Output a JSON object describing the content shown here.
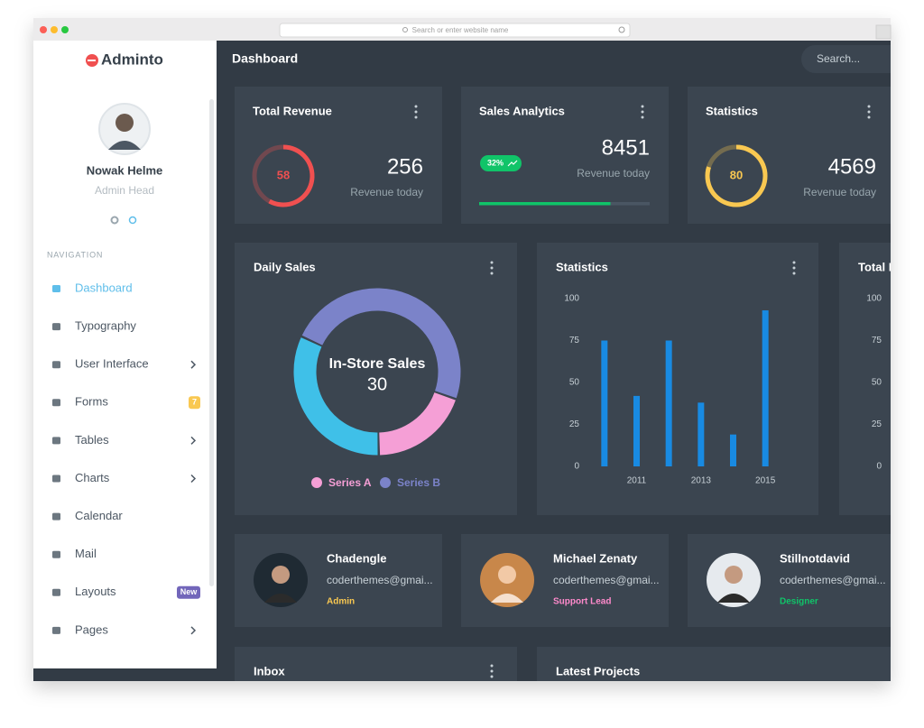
{
  "browser": {
    "address_placeholder": "Search or enter website name"
  },
  "sidebar": {
    "brand": "Adminto",
    "user": {
      "name": "Nowak Helme",
      "role": "Admin Head"
    },
    "nav_heading": "NAVIGATION",
    "nav": [
      {
        "label": "Dashboard"
      },
      {
        "label": "Typography"
      },
      {
        "label": "User Interface"
      },
      {
        "label": "Forms",
        "badge": "7"
      },
      {
        "label": "Tables"
      },
      {
        "label": "Charts"
      },
      {
        "label": "Calendar"
      },
      {
        "label": "Mail"
      },
      {
        "label": "Layouts",
        "badge": "New"
      },
      {
        "label": "Pages"
      }
    ]
  },
  "topbar": {
    "title": "Dashboard",
    "search_placeholder": "Search..."
  },
  "widgets": [
    {
      "title": "Total Revenue",
      "percent": 58,
      "value": 256,
      "caption": "Revenue today",
      "color": "#f05050"
    },
    {
      "title": "Sales Analytics",
      "badge": "32%",
      "value": 8451,
      "caption": "Revenue today",
      "progress": 77,
      "color": "#10c469"
    },
    {
      "title": "Statistics",
      "percent": 80,
      "value": 4569,
      "caption": "Revenue today",
      "color": "#f9c851"
    }
  ],
  "chart_data": [
    {
      "type": "donut",
      "title": "Daily Sales",
      "center_label": "In-Store Sales",
      "values": [
        30,
        12,
        20
      ],
      "colors": [
        "#7b83c9",
        "#f59fd6",
        "#3fc0e8"
      ],
      "legend": [
        {
          "name": "Series A",
          "color": "#f59fd6"
        },
        {
          "name": "Series B",
          "color": "#7b83c9"
        }
      ]
    },
    {
      "type": "bar",
      "title": "Statistics",
      "categories": [
        null,
        "2011",
        null,
        "2013",
        null,
        "2015"
      ],
      "values": [
        75,
        42,
        75,
        38,
        19,
        93
      ],
      "color": "#188ae2",
      "ylim": [
        0,
        100
      ],
      "yticks": [
        0,
        25,
        50,
        75,
        100
      ]
    },
    {
      "type": "bar",
      "title": "Total Revenue",
      "ylim": [
        0,
        100
      ],
      "yticks": [
        0,
        25,
        50,
        75,
        100
      ]
    }
  ],
  "contacts": [
    {
      "name": "Chadengle",
      "email": "coderthemes@gmai...",
      "role": "Admin",
      "role_color": "#f9c851"
    },
    {
      "name": "Michael Zenaty",
      "email": "coderthemes@gmai...",
      "role": "Support Lead",
      "role_color": "#ff8acc"
    },
    {
      "name": "Stillnotdavid",
      "email": "coderthemes@gmai...",
      "role": "Designer",
      "role_color": "#10c469"
    }
  ],
  "panels": [
    {
      "title": "Inbox"
    },
    {
      "title": "Latest Projects"
    }
  ]
}
